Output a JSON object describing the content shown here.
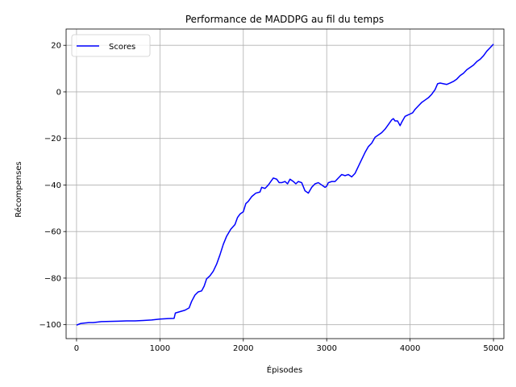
{
  "chart_data": {
    "type": "line",
    "title": "Performance de MADDPG au fil du temps",
    "xlabel": "Épisodes",
    "ylabel": "Récompenses",
    "xlim": [
      -125,
      5125
    ],
    "ylim": [
      -106,
      27
    ],
    "xticks": [
      0,
      1000,
      2000,
      3000,
      4000,
      5000
    ],
    "yticks": [
      -100,
      -80,
      -60,
      -40,
      -20,
      0,
      20
    ],
    "xtick_labels": [
      "0",
      "1000",
      "2000",
      "3000",
      "4000",
      "5000"
    ],
    "ytick_labels": [
      "−100",
      "−80",
      "−60",
      "−40",
      "−20",
      "0",
      "20"
    ],
    "grid": true,
    "legend_position": "upper-left",
    "series": [
      {
        "name": "Scores",
        "color": "#0000ff",
        "points": [
          [
            0,
            -100.2
          ],
          [
            50,
            -99.5
          ],
          [
            100,
            -99.3
          ],
          [
            150,
            -99.1
          ],
          [
            200,
            -99.1
          ],
          [
            250,
            -98.9
          ],
          [
            300,
            -98.7
          ],
          [
            400,
            -98.6
          ],
          [
            500,
            -98.5
          ],
          [
            600,
            -98.4
          ],
          [
            700,
            -98.4
          ],
          [
            800,
            -98.2
          ],
          [
            900,
            -98.0
          ],
          [
            1000,
            -97.6
          ],
          [
            1100,
            -97.4
          ],
          [
            1170,
            -97.3
          ],
          [
            1185,
            -95.0
          ],
          [
            1250,
            -94.3
          ],
          [
            1300,
            -93.8
          ],
          [
            1350,
            -92.8
          ],
          [
            1380,
            -90.0
          ],
          [
            1420,
            -87.3
          ],
          [
            1460,
            -85.9
          ],
          [
            1500,
            -85.5
          ],
          [
            1530,
            -83.5
          ],
          [
            1560,
            -80.3
          ],
          [
            1600,
            -79.0
          ],
          [
            1640,
            -77.0
          ],
          [
            1680,
            -74.0
          ],
          [
            1720,
            -70.0
          ],
          [
            1760,
            -65.5
          ],
          [
            1800,
            -62.0
          ],
          [
            1850,
            -59.0
          ],
          [
            1900,
            -57.0
          ],
          [
            1930,
            -54.0
          ],
          [
            1960,
            -52.5
          ],
          [
            2000,
            -51.5
          ],
          [
            2030,
            -48.0
          ],
          [
            2060,
            -47.0
          ],
          [
            2100,
            -45.0
          ],
          [
            2150,
            -43.5
          ],
          [
            2200,
            -43.0
          ],
          [
            2220,
            -41.0
          ],
          [
            2260,
            -41.5
          ],
          [
            2300,
            -40.0
          ],
          [
            2330,
            -38.5
          ],
          [
            2360,
            -37.0
          ],
          [
            2400,
            -37.5
          ],
          [
            2430,
            -39.0
          ],
          [
            2460,
            -39.0
          ],
          [
            2500,
            -38.5
          ],
          [
            2530,
            -39.5
          ],
          [
            2560,
            -37.5
          ],
          [
            2600,
            -38.5
          ],
          [
            2630,
            -39.5
          ],
          [
            2660,
            -38.5
          ],
          [
            2700,
            -39.0
          ],
          [
            2740,
            -42.5
          ],
          [
            2780,
            -43.5
          ],
          [
            2820,
            -41.0
          ],
          [
            2860,
            -39.5
          ],
          [
            2900,
            -39.0
          ],
          [
            2940,
            -40.0
          ],
          [
            2980,
            -41.0
          ],
          [
            3000,
            -40.5
          ],
          [
            3020,
            -39.0
          ],
          [
            3060,
            -38.5
          ],
          [
            3100,
            -38.5
          ],
          [
            3140,
            -37.0
          ],
          [
            3180,
            -35.5
          ],
          [
            3220,
            -36.0
          ],
          [
            3260,
            -35.5
          ],
          [
            3300,
            -36.5
          ],
          [
            3340,
            -35.0
          ],
          [
            3380,
            -32.0
          ],
          [
            3420,
            -29.0
          ],
          [
            3460,
            -26.0
          ],
          [
            3500,
            -23.5
          ],
          [
            3540,
            -22.0
          ],
          [
            3580,
            -19.5
          ],
          [
            3620,
            -18.5
          ],
          [
            3660,
            -17.5
          ],
          [
            3700,
            -16.0
          ],
          [
            3740,
            -14.0
          ],
          [
            3780,
            -12.0
          ],
          [
            3800,
            -11.5
          ],
          [
            3820,
            -12.5
          ],
          [
            3850,
            -12.5
          ],
          [
            3880,
            -14.5
          ],
          [
            3900,
            -13.0
          ],
          [
            3940,
            -10.5
          ],
          [
            3970,
            -10.0
          ],
          [
            4000,
            -9.5
          ],
          [
            4030,
            -9.0
          ],
          [
            4060,
            -7.5
          ],
          [
            4100,
            -6.0
          ],
          [
            4140,
            -4.5
          ],
          [
            4180,
            -3.5
          ],
          [
            4220,
            -2.5
          ],
          [
            4260,
            -1.0
          ],
          [
            4300,
            1.0
          ],
          [
            4330,
            3.5
          ],
          [
            4360,
            3.8
          ],
          [
            4400,
            3.5
          ],
          [
            4440,
            3.2
          ],
          [
            4480,
            3.8
          ],
          [
            4520,
            4.5
          ],
          [
            4560,
            5.5
          ],
          [
            4600,
            7.0
          ],
          [
            4640,
            8.0
          ],
          [
            4680,
            9.5
          ],
          [
            4720,
            10.5
          ],
          [
            4760,
            11.5
          ],
          [
            4800,
            13.0
          ],
          [
            4840,
            14.0
          ],
          [
            4880,
            15.5
          ],
          [
            4920,
            17.5
          ],
          [
            4960,
            19.0
          ],
          [
            5000,
            20.5
          ]
        ]
      }
    ]
  }
}
